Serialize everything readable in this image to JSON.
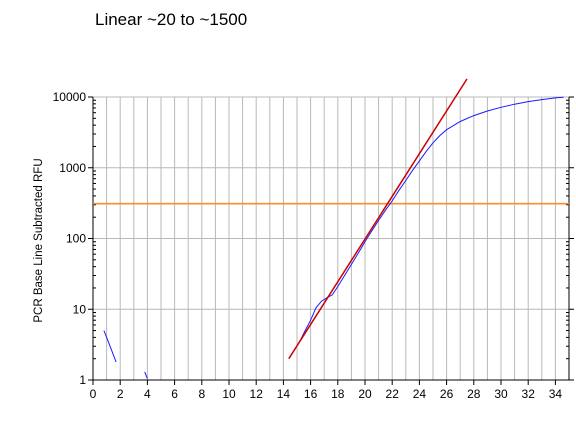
{
  "chart_data": {
    "type": "line",
    "title": "Linear ~20 to ~1500",
    "xlabel": "",
    "ylabel": "PCR Base Line Subtracted RFU",
    "x_range": [
      0,
      35
    ],
    "y_range": [
      1,
      10000
    ],
    "y_scale": "log",
    "grid": true,
    "x_ticks": [
      0,
      2,
      4,
      6,
      8,
      10,
      12,
      14,
      16,
      18,
      20,
      22,
      24,
      26,
      28,
      30,
      32,
      34
    ],
    "x_gridlines": [
      1,
      2,
      3,
      4,
      5,
      6,
      7,
      8,
      9,
      10,
      11,
      12,
      13,
      14,
      15,
      16,
      17,
      18,
      19,
      20,
      21,
      22,
      23,
      24,
      25,
      26,
      27,
      28,
      29,
      30,
      31,
      32,
      33,
      34
    ],
    "y_ticks": [
      {
        "value": 1,
        "label": "1"
      },
      {
        "value": 10,
        "label": "10"
      },
      {
        "value": 100,
        "label": "100"
      },
      {
        "value": 1000,
        "label": "1000"
      },
      {
        "value": 10000,
        "label": "10000"
      }
    ],
    "series": [
      {
        "color": "#1a1aff",
        "segments": [
          [
            [
              0.8,
              5.0
            ],
            [
              1.2,
              3.2
            ],
            [
              1.7,
              1.8
            ]
          ],
          [
            [
              3.8,
              1.3
            ],
            [
              4.0,
              1.05
            ]
          ],
          [
            [
              15.2,
              3.5
            ],
            [
              15.6,
              5.0
            ],
            [
              16.0,
              7.0
            ],
            [
              16.4,
              10.5
            ],
            [
              16.8,
              13.0
            ],
            [
              17.2,
              14.5
            ],
            [
              17.6,
              16.0
            ],
            [
              18.0,
              21.0
            ],
            [
              18.5,
              30.0
            ],
            [
              19.0,
              43.0
            ],
            [
              19.5,
              62.0
            ],
            [
              20.0,
              90.0
            ],
            [
              20.5,
              128.0
            ],
            [
              21.0,
              180.0
            ],
            [
              21.5,
              250.0
            ],
            [
              22.0,
              340.0
            ],
            [
              22.5,
              480.0
            ],
            [
              23.0,
              660.0
            ],
            [
              23.5,
              920.0
            ],
            [
              24.0,
              1250.0
            ],
            [
              24.5,
              1700.0
            ],
            [
              25.0,
              2250.0
            ],
            [
              25.5,
              2850.0
            ],
            [
              26.0,
              3450.0
            ],
            [
              27.0,
              4500.0
            ],
            [
              28.0,
              5450.0
            ],
            [
              29.0,
              6350.0
            ],
            [
              30.0,
              7150.0
            ],
            [
              31.0,
              7900.0
            ],
            [
              32.0,
              8600.0
            ],
            [
              33.0,
              9200.0
            ],
            [
              34.0,
              9700.0
            ],
            [
              34.6,
              9900.0
            ]
          ]
        ]
      },
      {
        "color": "#cc0000",
        "segments": [
          [
            [
              14.4,
              2.0
            ],
            [
              27.5,
              18000.0
            ]
          ]
        ]
      }
    ],
    "threshold": {
      "value": 310,
      "color": "#ff8c2a"
    }
  }
}
